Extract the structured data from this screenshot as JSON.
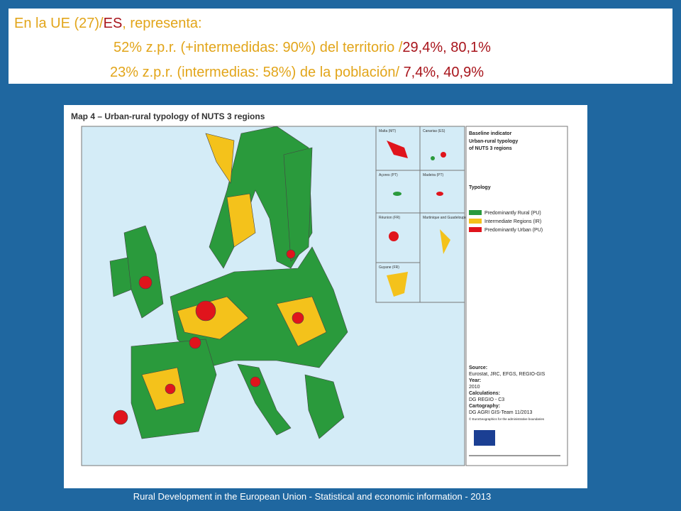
{
  "header": {
    "line1": [
      "En la UE (27)/",
      "ES",
      ", representa:"
    ],
    "line2": [
      "52% z.p.r. (+intermedidas: 90%) del territorio /",
      "29,4%, 80,1%"
    ],
    "line3": [
      "23% z.p.r. (intermedias: 58%) de la población/ ",
      "7,4%, 40,9%"
    ]
  },
  "map": {
    "title": "Map 4 – Urban-rural typology of NUTS 3 regions",
    "insets": [
      "Malta (MT)",
      "Canarias (ES)",
      "Açores (PT)",
      "Madeira (PT)",
      "Réunion (FR)",
      "Martinique and Guadeloupe (FR)",
      "Guyane (FR)"
    ],
    "legend": {
      "heading": "Baseline indicator",
      "subtitle": [
        "Urban-rural typology",
        "of NUTS 3 regions"
      ],
      "typology": "Typology",
      "items": [
        "Predominantly Rural (PU)",
        "Intermediate Regions (IR)",
        "Predominantly Urban (PU)"
      ]
    },
    "credits": [
      "Source:",
      "Eurostat, JRC, EFGS, REGIO-GIS",
      "Year:",
      "2010",
      "Calculations:",
      "DG REGIO - C3",
      "Cartography:",
      "DG AGRI GIS-Team 11/2013",
      "© EuroGeographics for the administrative boundaries"
    ]
  },
  "footer": "Rural Development in the European Union - Statistical and economic information - 2013"
}
